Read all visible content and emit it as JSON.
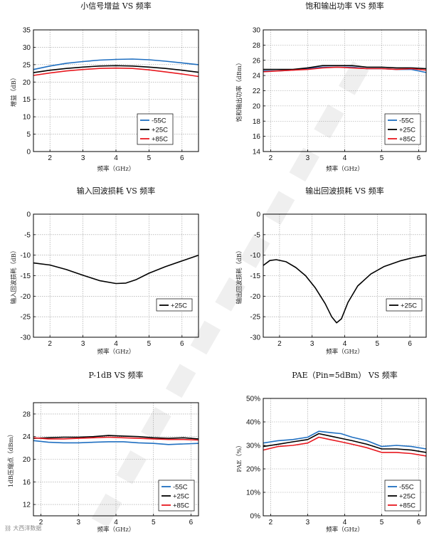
{
  "chart_data": [
    {
      "type": "line",
      "title": "小信号增益 VS 频率",
      "xlabel": "频率（GHz）",
      "ylabel": "增益（dB）",
      "xlim": [
        1.5,
        6.5
      ],
      "ylim": [
        0,
        35
      ],
      "xticks": [
        2,
        3,
        4,
        5,
        6
      ],
      "yticks": [
        0,
        5,
        10,
        15,
        20,
        25,
        30,
        35
      ],
      "grid": true,
      "legend_position": "bottom-right",
      "series": [
        {
          "name": "-55C",
          "color": "#1f6fc1",
          "x": [
            1.5,
            2.0,
            2.5,
            3.0,
            3.5,
            4.0,
            4.5,
            5.0,
            5.5,
            6.0,
            6.5
          ],
          "y": [
            23.6,
            24.6,
            25.4,
            25.9,
            26.3,
            26.5,
            26.6,
            26.4,
            26.0,
            25.5,
            25.0
          ]
        },
        {
          "name": "+25C",
          "color": "#000000",
          "x": [
            1.5,
            2.0,
            2.5,
            3.0,
            3.5,
            4.0,
            4.5,
            5.0,
            5.5,
            6.0,
            6.5
          ],
          "y": [
            22.7,
            23.4,
            23.9,
            24.3,
            24.6,
            24.7,
            24.6,
            24.3,
            23.9,
            23.4,
            22.8
          ]
        },
        {
          "name": "+85C",
          "color": "#e8181f",
          "x": [
            1.5,
            2.0,
            2.5,
            3.0,
            3.5,
            4.0,
            4.5,
            5.0,
            5.5,
            6.0,
            6.5
          ],
          "y": [
            21.9,
            22.6,
            23.2,
            23.6,
            23.9,
            24.0,
            23.9,
            23.5,
            22.9,
            22.3,
            21.6
          ]
        }
      ]
    },
    {
      "type": "line",
      "title": "饱和输出功率 VS 频率",
      "xlabel": "频率（GHz）",
      "ylabel": "饱和输出功率（dBm）",
      "xlim": [
        1.8,
        6.2
      ],
      "ylim": [
        14,
        30
      ],
      "xticks": [
        2,
        3,
        4,
        5,
        6
      ],
      "yticks": [
        14,
        16,
        18,
        20,
        22,
        24,
        26,
        28,
        30
      ],
      "grid": true,
      "legend_position": "bottom-right",
      "series": [
        {
          "name": "-55C",
          "color": "#1f6fc1",
          "x": [
            1.8,
            2.2,
            2.6,
            3.0,
            3.4,
            3.8,
            4.2,
            4.6,
            5.0,
            5.4,
            5.8,
            6.2
          ],
          "y": [
            24.6,
            24.6,
            24.7,
            24.9,
            25.1,
            25.1,
            25.1,
            24.9,
            24.9,
            24.8,
            24.8,
            24.4
          ]
        },
        {
          "name": "+25C",
          "color": "#000000",
          "x": [
            1.8,
            2.2,
            2.6,
            3.0,
            3.4,
            3.8,
            4.2,
            4.6,
            5.0,
            5.4,
            5.8,
            6.2
          ],
          "y": [
            24.8,
            24.8,
            24.8,
            25.0,
            25.3,
            25.3,
            25.3,
            25.1,
            25.1,
            25.0,
            25.0,
            24.9
          ]
        },
        {
          "name": "+85C",
          "color": "#e8181f",
          "x": [
            1.8,
            2.2,
            2.6,
            3.0,
            3.4,
            3.8,
            4.2,
            4.6,
            5.0,
            5.4,
            5.8,
            6.2
          ],
          "y": [
            24.5,
            24.6,
            24.7,
            24.8,
            25.0,
            25.1,
            25.0,
            24.9,
            24.9,
            24.8,
            24.9,
            24.7
          ]
        }
      ]
    },
    {
      "type": "line",
      "title": "输入回波损耗 VS 频率",
      "xlabel": "频率（GHz）",
      "ylabel": "输入回波损耗（dB）",
      "xlim": [
        1.5,
        6.5
      ],
      "ylim": [
        -30,
        0
      ],
      "xticks": [
        2,
        3,
        4,
        5,
        6
      ],
      "yticks": [
        -30,
        -25,
        -20,
        -15,
        -10,
        -5,
        0
      ],
      "grid": true,
      "legend_position": "bottom-right",
      "series": [
        {
          "name": "+25C",
          "color": "#000000",
          "x": [
            1.5,
            2.0,
            2.5,
            3.0,
            3.5,
            4.0,
            4.3,
            4.6,
            5.0,
            5.5,
            6.0,
            6.5
          ],
          "y": [
            -11.9,
            -12.4,
            -13.5,
            -14.9,
            -16.2,
            -16.9,
            -16.8,
            -16.0,
            -14.4,
            -12.8,
            -11.4,
            -10.0
          ]
        }
      ]
    },
    {
      "type": "line",
      "title": "输出回波损耗 VS 频率",
      "xlabel": "频率（GHz）",
      "ylabel": "输出回波损耗（dB）",
      "xlim": [
        1.5,
        6.5
      ],
      "ylim": [
        -30,
        0
      ],
      "xticks": [
        2,
        3,
        4,
        5,
        6
      ],
      "yticks": [
        -30,
        -25,
        -20,
        -15,
        -10,
        -5,
        0
      ],
      "grid": true,
      "legend_position": "bottom-right",
      "series": [
        {
          "name": "+25C",
          "color": "#000000",
          "x": [
            1.5,
            1.7,
            1.9,
            2.2,
            2.5,
            2.8,
            3.1,
            3.4,
            3.6,
            3.75,
            3.9,
            4.1,
            4.4,
            4.8,
            5.2,
            5.7,
            6.1,
            6.5
          ],
          "y": [
            -12.5,
            -11.3,
            -11.1,
            -11.6,
            -13.0,
            -15.0,
            -18.0,
            -21.8,
            -25.0,
            -26.5,
            -25.5,
            -21.5,
            -17.5,
            -14.6,
            -12.8,
            -11.4,
            -10.6,
            -10.0
          ]
        }
      ]
    },
    {
      "type": "line",
      "title": "P-1dB VS 频率",
      "xlabel": "频率（GHz）",
      "ylabel": "1dB压缩点（dBm）",
      "xlim": [
        1.8,
        6.2
      ],
      "ylim": [
        10,
        30
      ],
      "xticks": [
        2,
        3,
        4,
        5,
        6
      ],
      "yticks": [
        12,
        16,
        20,
        24,
        28
      ],
      "grid": true,
      "legend_position": "bottom-right",
      "series": [
        {
          "name": "-55C",
          "color": "#1f6fc1",
          "x": [
            1.8,
            2.2,
            2.6,
            3.0,
            3.4,
            3.8,
            4.2,
            4.6,
            5.0,
            5.4,
            5.8,
            6.2
          ],
          "y": [
            23.3,
            23.0,
            22.9,
            22.9,
            23.0,
            23.1,
            23.1,
            22.9,
            22.8,
            22.6,
            22.7,
            22.8
          ]
        },
        {
          "name": "+25C",
          "color": "#000000",
          "x": [
            1.8,
            2.2,
            2.6,
            3.0,
            3.4,
            3.8,
            4.2,
            4.6,
            5.0,
            5.4,
            5.8,
            6.2
          ],
          "y": [
            23.7,
            23.8,
            23.9,
            23.9,
            24.0,
            24.2,
            24.1,
            24.0,
            23.8,
            23.7,
            23.8,
            23.6
          ]
        },
        {
          "name": "+85C",
          "color": "#e8181f",
          "x": [
            1.8,
            2.2,
            2.6,
            3.0,
            3.4,
            3.8,
            4.2,
            4.6,
            5.0,
            5.4,
            5.8,
            6.2
          ],
          "y": [
            23.8,
            23.6,
            23.6,
            23.7,
            23.8,
            23.9,
            23.8,
            23.7,
            23.6,
            23.5,
            23.5,
            23.4
          ]
        }
      ]
    },
    {
      "type": "line",
      "title": "PAE（Pin=5dBm） VS 频率",
      "xlabel": "频率（GHz）",
      "ylabel": "PAE（%）",
      "xlim": [
        1.8,
        6.2
      ],
      "ylim": [
        0,
        50
      ],
      "xticks": [
        2,
        3,
        4,
        5,
        6
      ],
      "yticks": [
        0,
        10,
        20,
        30,
        40,
        50
      ],
      "ytick_format": "percent",
      "grid": true,
      "legend_position": "bottom-right",
      "series": [
        {
          "name": "-55C",
          "color": "#1f6fc1",
          "x": [
            1.8,
            2.2,
            2.6,
            3.0,
            3.3,
            3.6,
            3.9,
            4.2,
            4.6,
            5.0,
            5.4,
            5.8,
            6.2
          ],
          "y": [
            31.0,
            32.0,
            32.5,
            33.5,
            36.0,
            35.5,
            35.0,
            33.5,
            32.0,
            29.5,
            30.0,
            29.5,
            28.5
          ]
        },
        {
          "name": "+25C",
          "color": "#000000",
          "x": [
            1.8,
            2.2,
            2.6,
            3.0,
            3.3,
            3.6,
            3.9,
            4.2,
            4.6,
            5.0,
            5.4,
            5.8,
            6.2
          ],
          "y": [
            29.5,
            30.5,
            31.5,
            32.5,
            35.0,
            34.0,
            33.0,
            32.0,
            30.5,
            28.5,
            28.5,
            28.0,
            27.0
          ]
        },
        {
          "name": "+85C",
          "color": "#e8181f",
          "x": [
            1.8,
            2.2,
            2.6,
            3.0,
            3.3,
            3.6,
            3.9,
            4.2,
            4.6,
            5.0,
            5.4,
            5.8,
            6.2
          ],
          "y": [
            28.0,
            29.5,
            30.0,
            31.0,
            33.5,
            32.5,
            31.5,
            30.5,
            29.0,
            27.0,
            27.0,
            26.5,
            25.5
          ]
        }
      ]
    }
  ],
  "watermark": {
    "text": "大西洋数据"
  }
}
